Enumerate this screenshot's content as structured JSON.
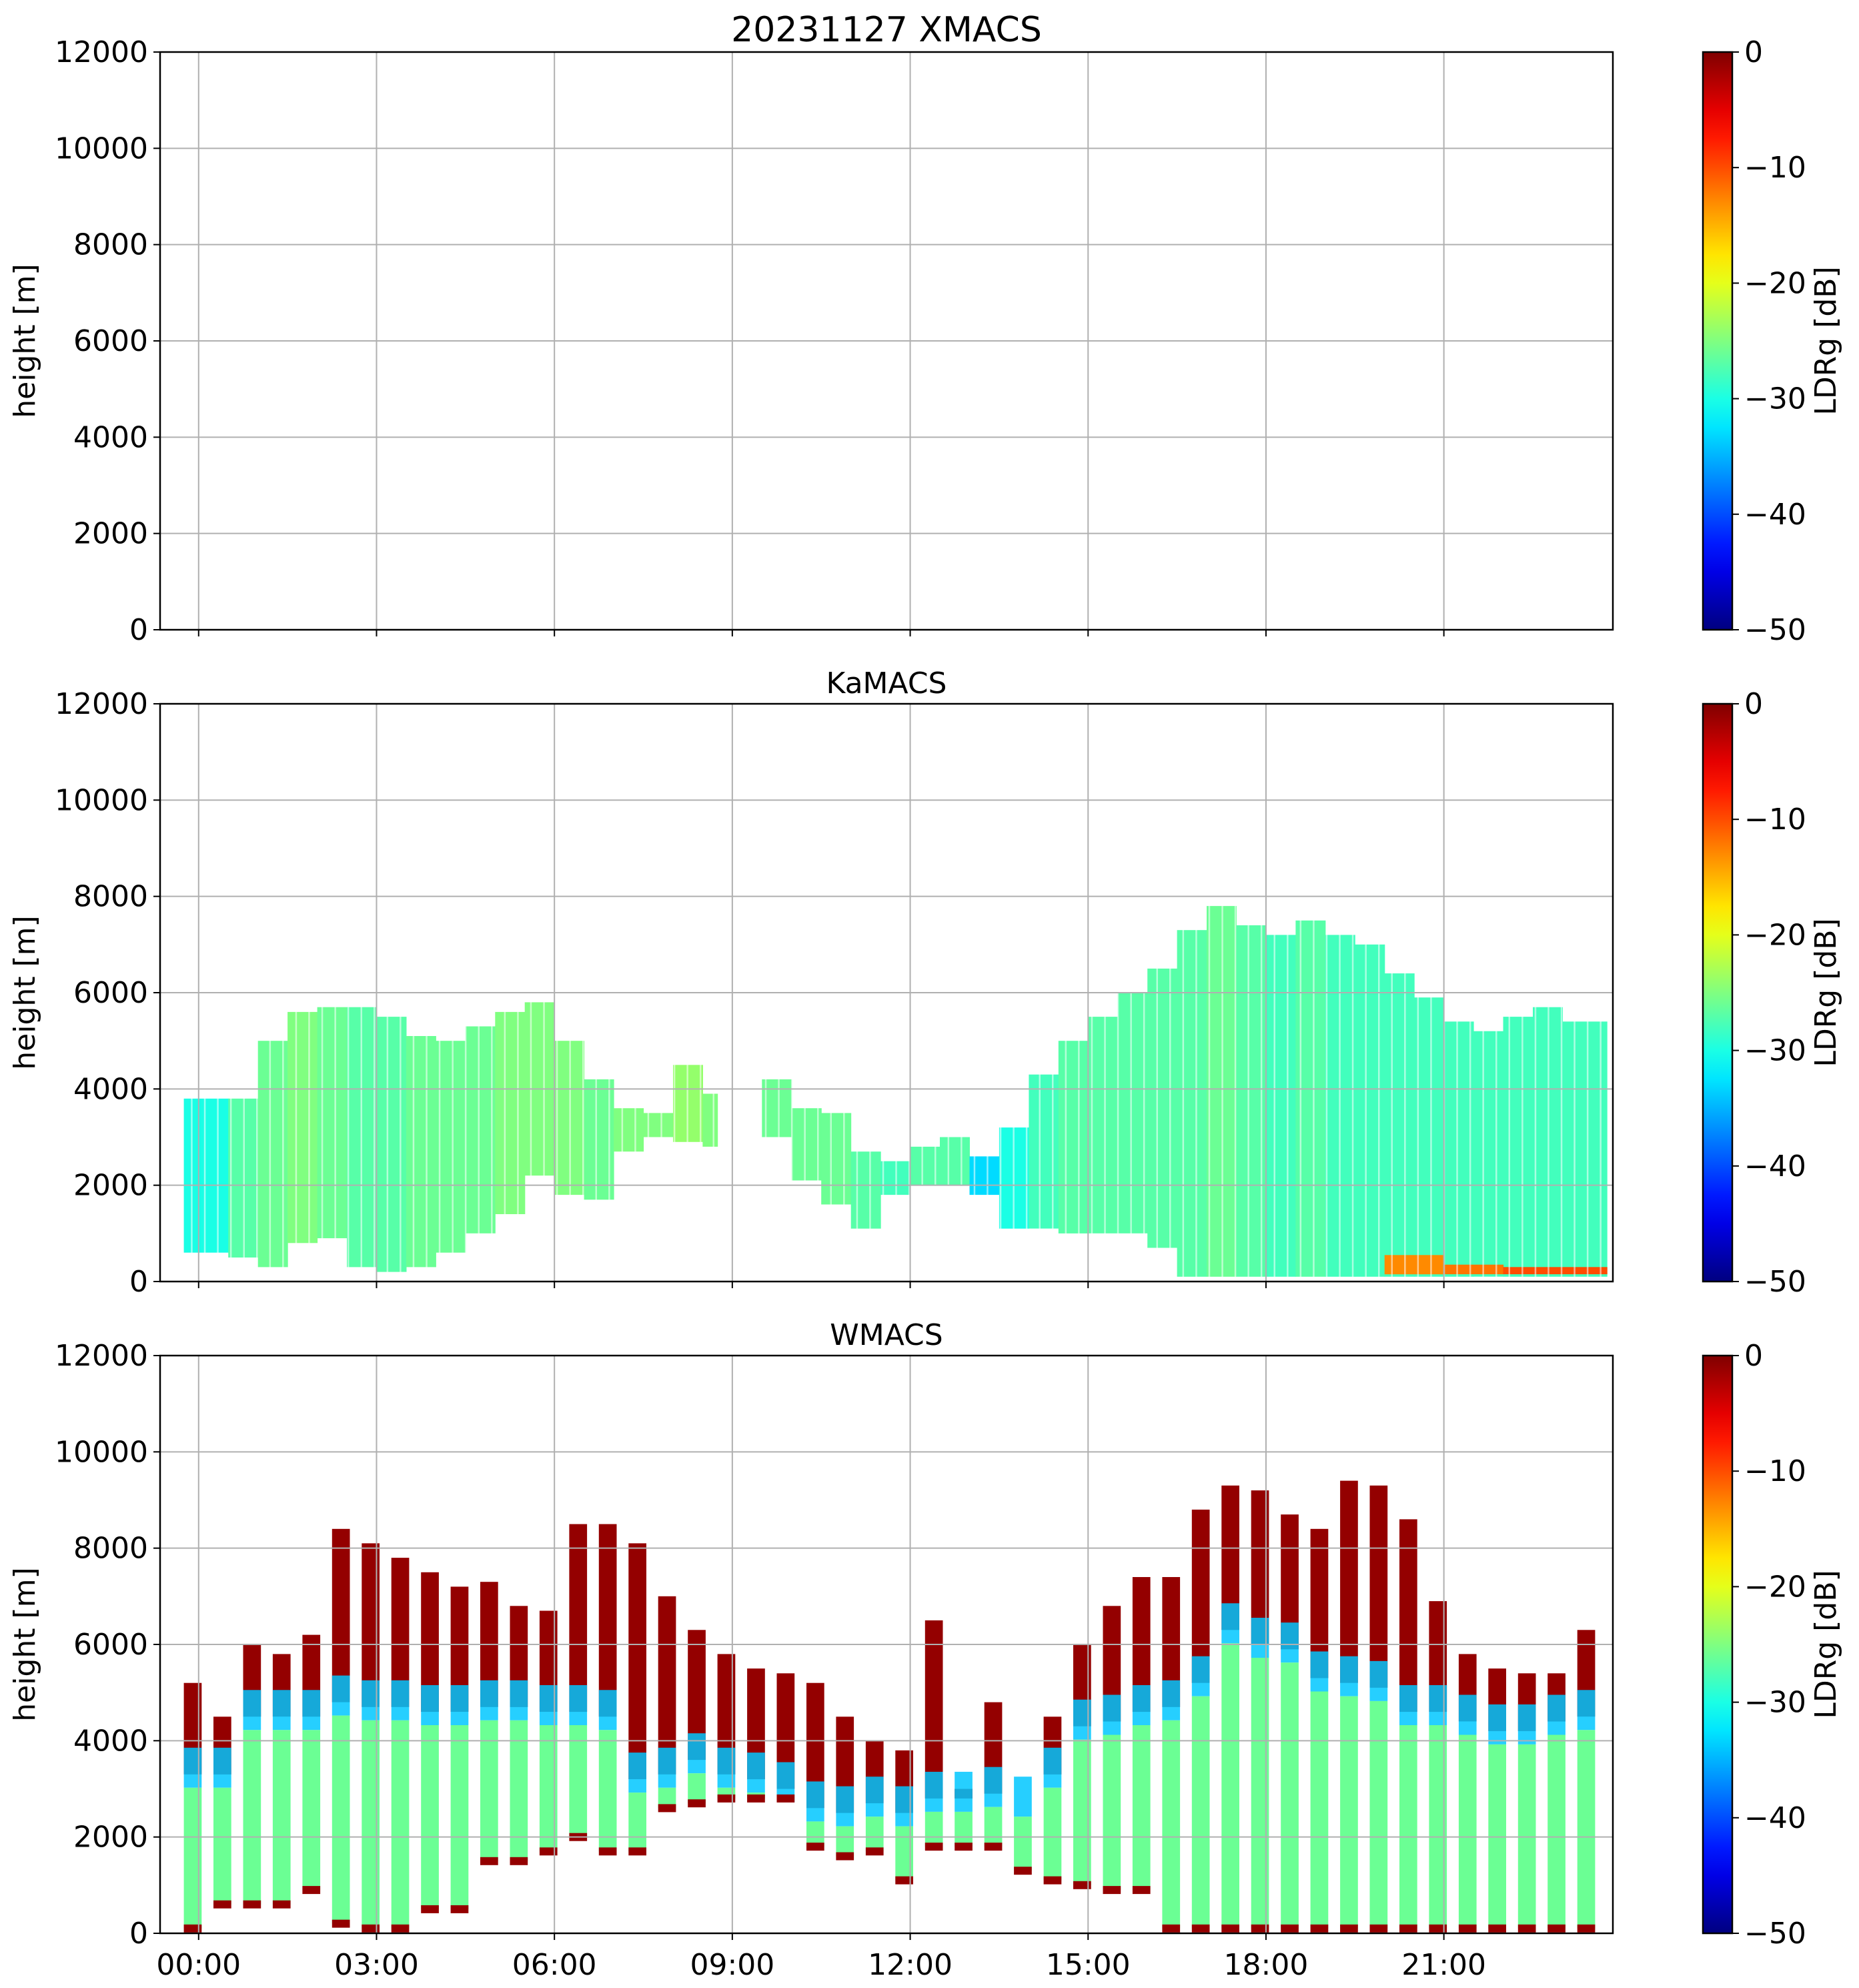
{
  "chart_data": [
    {
      "type": "heatmap",
      "title": "20231127 XMACS",
      "xlabel": "",
      "ylabel": "height [m]",
      "ylim": [
        0,
        12000
      ],
      "yticks": [
        "0",
        "2000",
        "4000",
        "6000",
        "8000",
        "10000",
        "12000"
      ],
      "xticks": [],
      "grid": true,
      "colorbar": {
        "label": "LDRg [dB]",
        "range": [
          -50,
          0
        ],
        "ticks": [
          "0",
          "−10",
          "−20",
          "−30",
          "−40",
          "−50"
        ],
        "colormap": "jet"
      },
      "cells": []
    },
    {
      "type": "heatmap",
      "title": "KaMACS",
      "xlabel": "",
      "ylabel": "height [m]",
      "ylim": [
        0,
        12000
      ],
      "yticks": [
        "0",
        "2000",
        "4000",
        "6000",
        "8000",
        "10000",
        "12000"
      ],
      "xticks": [],
      "grid": true,
      "colorbar": {
        "label": "LDRg [dB]",
        "range": [
          -50,
          0
        ],
        "ticks": [
          "0",
          "−10",
          "−20",
          "−30",
          "−40",
          "−50"
        ],
        "colormap": "jet"
      },
      "cells": [
        {
          "t0": -0.25,
          "t1": 0.5,
          "h0": 600,
          "h1": 3800,
          "ldr": -30
        },
        {
          "t0": 0.5,
          "t1": 1.0,
          "h0": 500,
          "h1": 3800,
          "ldr": -27
        },
        {
          "t0": 1.0,
          "t1": 1.5,
          "h0": 300,
          "h1": 5000,
          "ldr": -26
        },
        {
          "t0": 1.5,
          "t1": 2.0,
          "h0": 800,
          "h1": 5600,
          "ldr": -25
        },
        {
          "t0": 2.0,
          "t1": 2.5,
          "h0": 900,
          "h1": 5700,
          "ldr": -26
        },
        {
          "t0": 2.5,
          "t1": 3.0,
          "h0": 300,
          "h1": 5700,
          "ldr": -27
        },
        {
          "t0": 3.0,
          "t1": 3.5,
          "h0": 200,
          "h1": 5500,
          "ldr": -27
        },
        {
          "t0": 3.5,
          "t1": 4.0,
          "h0": 300,
          "h1": 5100,
          "ldr": -26
        },
        {
          "t0": 4.0,
          "t1": 4.5,
          "h0": 600,
          "h1": 5000,
          "ldr": -26
        },
        {
          "t0": 4.5,
          "t1": 5.0,
          "h0": 1000,
          "h1": 5300,
          "ldr": -26
        },
        {
          "t0": 5.0,
          "t1": 5.5,
          "h0": 1400,
          "h1": 5600,
          "ldr": -25
        },
        {
          "t0": 5.5,
          "t1": 6.0,
          "h0": 2200,
          "h1": 5800,
          "ldr": -25
        },
        {
          "t0": 6.0,
          "t1": 6.5,
          "h0": 1800,
          "h1": 5000,
          "ldr": -25
        },
        {
          "t0": 6.5,
          "t1": 7.0,
          "h0": 1700,
          "h1": 4200,
          "ldr": -26
        },
        {
          "t0": 7.0,
          "t1": 7.5,
          "h0": 2700,
          "h1": 3600,
          "ldr": -25
        },
        {
          "t0": 7.5,
          "t1": 8.0,
          "h0": 3000,
          "h1": 3500,
          "ldr": -25
        },
        {
          "t0": 8.0,
          "t1": 8.5,
          "h0": 2900,
          "h1": 4500,
          "ldr": -24
        },
        {
          "t0": 8.5,
          "t1": 8.75,
          "h0": 2800,
          "h1": 3900,
          "ldr": -25
        },
        {
          "t0": 9.5,
          "t1": 10.0,
          "h0": 3000,
          "h1": 4200,
          "ldr": -26
        },
        {
          "t0": 10.0,
          "t1": 10.5,
          "h0": 2100,
          "h1": 3600,
          "ldr": -26
        },
        {
          "t0": 10.5,
          "t1": 11.0,
          "h0": 1600,
          "h1": 3500,
          "ldr": -26
        },
        {
          "t0": 11.0,
          "t1": 11.5,
          "h0": 1100,
          "h1": 2700,
          "ldr": -27
        },
        {
          "t0": 11.5,
          "t1": 12.0,
          "h0": 1800,
          "h1": 2500,
          "ldr": -28
        },
        {
          "t0": 12.0,
          "t1": 12.5,
          "h0": 2000,
          "h1": 2800,
          "ldr": -27
        },
        {
          "t0": 12.5,
          "t1": 13.0,
          "h0": 2000,
          "h1": 3000,
          "ldr": -27
        },
        {
          "t0": 13.0,
          "t1": 13.5,
          "h0": 1800,
          "h1": 2600,
          "ldr": -33
        },
        {
          "t0": 13.5,
          "t1": 14.0,
          "h0": 1100,
          "h1": 3200,
          "ldr": -30
        },
        {
          "t0": 14.0,
          "t1": 14.5,
          "h0": 1100,
          "h1": 4300,
          "ldr": -28
        },
        {
          "t0": 14.5,
          "t1": 15.0,
          "h0": 1000,
          "h1": 5000,
          "ldr": -27
        },
        {
          "t0": 15.0,
          "t1": 15.5,
          "h0": 1000,
          "h1": 5500,
          "ldr": -27
        },
        {
          "t0": 15.5,
          "t1": 16.0,
          "h0": 1000,
          "h1": 6000,
          "ldr": -27
        },
        {
          "t0": 16.0,
          "t1": 16.5,
          "h0": 700,
          "h1": 6500,
          "ldr": -27
        },
        {
          "t0": 16.5,
          "t1": 17.0,
          "h0": 100,
          "h1": 7300,
          "ldr": -27
        },
        {
          "t0": 17.0,
          "t1": 17.5,
          "h0": 100,
          "h1": 7800,
          "ldr": -26
        },
        {
          "t0": 17.5,
          "t1": 18.0,
          "h0": 100,
          "h1": 7400,
          "ldr": -27
        },
        {
          "t0": 18.0,
          "t1": 18.5,
          "h0": 100,
          "h1": 7200,
          "ldr": -28
        },
        {
          "t0": 18.5,
          "t1": 19.0,
          "h0": 100,
          "h1": 7500,
          "ldr": -27
        },
        {
          "t0": 19.0,
          "t1": 19.5,
          "h0": 100,
          "h1": 7200,
          "ldr": -28
        },
        {
          "t0": 19.5,
          "t1": 20.0,
          "h0": 100,
          "h1": 7000,
          "ldr": -28
        },
        {
          "t0": 20.0,
          "t1": 20.5,
          "h0": 100,
          "h1": 6400,
          "ldr": -28
        },
        {
          "t0": 20.5,
          "t1": 21.0,
          "h0": 100,
          "h1": 5900,
          "ldr": -28
        },
        {
          "t0": 21.0,
          "t1": 21.5,
          "h0": 100,
          "h1": 5400,
          "ldr": -28
        },
        {
          "t0": 21.5,
          "t1": 22.0,
          "h0": 100,
          "h1": 5200,
          "ldr": -28
        },
        {
          "t0": 22.0,
          "t1": 22.5,
          "h0": 100,
          "h1": 5500,
          "ldr": -28
        },
        {
          "t0": 22.5,
          "t1": 23.0,
          "h0": 100,
          "h1": 5700,
          "ldr": -28
        },
        {
          "t0": 23.0,
          "t1": 23.75,
          "h0": 100,
          "h1": 5400,
          "ldr": -28
        },
        {
          "t0": 20.0,
          "t1": 21.0,
          "h0": 150,
          "h1": 550,
          "ldr": -13
        },
        {
          "t0": 21.0,
          "t1": 22.0,
          "h0": 150,
          "h1": 350,
          "ldr": -12
        },
        {
          "t0": 22.0,
          "t1": 23.75,
          "h0": 150,
          "h1": 300,
          "ldr": -10
        }
      ]
    },
    {
      "type": "heatmap",
      "title": "WMACS",
      "xlabel": "",
      "ylabel": "height [m]",
      "ylim": [
        0,
        12000
      ],
      "yticks": [
        "0",
        "2000",
        "4000",
        "6000",
        "8000",
        "10000",
        "12000"
      ],
      "xticks": [
        "00:00",
        "03:00",
        "06:00",
        "09:00",
        "12:00",
        "15:00",
        "18:00",
        "21:00"
      ],
      "grid": true,
      "colorbar": {
        "label": "LDRg [dB]",
        "range": [
          -50,
          0
        ],
        "ticks": [
          "0",
          "−10",
          "−20",
          "−30",
          "−40",
          "−50"
        ],
        "colormap": "jet"
      },
      "columns": [
        {
          "t": -0.1,
          "bottom": 100,
          "top": 5200,
          "melt": 3300
        },
        {
          "t": 0.4,
          "bottom": 600,
          "top": 4500,
          "melt": 3300
        },
        {
          "t": 0.9,
          "bottom": 600,
          "top": 6000,
          "melt": 4500
        },
        {
          "t": 1.4,
          "bottom": 600,
          "top": 5800,
          "melt": 4500
        },
        {
          "t": 1.9,
          "bottom": 900,
          "top": 6200,
          "melt": 4500
        },
        {
          "t": 2.4,
          "bottom": 200,
          "top": 8400,
          "melt": 4800
        },
        {
          "t": 2.9,
          "bottom": 100,
          "top": 8100,
          "melt": 4700
        },
        {
          "t": 3.4,
          "bottom": 100,
          "top": 7800,
          "melt": 4700
        },
        {
          "t": 3.9,
          "bottom": 500,
          "top": 7500,
          "melt": 4600
        },
        {
          "t": 4.4,
          "bottom": 500,
          "top": 7200,
          "melt": 4600
        },
        {
          "t": 4.9,
          "bottom": 1500,
          "top": 7300,
          "melt": 4700
        },
        {
          "t": 5.4,
          "bottom": 1500,
          "top": 6800,
          "melt": 4700
        },
        {
          "t": 5.9,
          "bottom": 1700,
          "top": 6700,
          "melt": 4600
        },
        {
          "t": 6.4,
          "bottom": 2000,
          "top": 8500,
          "melt": 4600
        },
        {
          "t": 6.9,
          "bottom": 1700,
          "top": 8500,
          "melt": 4500
        },
        {
          "t": 7.4,
          "bottom": 1700,
          "top": 8100,
          "melt": 3200
        },
        {
          "t": 7.9,
          "bottom": 2600,
          "top": 7000,
          "melt": 3300
        },
        {
          "t": 8.4,
          "bottom": 2700,
          "top": 6300,
          "melt": 3600
        },
        {
          "t": 8.9,
          "bottom": 2800,
          "top": 5800,
          "melt": 3300
        },
        {
          "t": 9.4,
          "bottom": 2800,
          "top": 5500,
          "melt": 3200
        },
        {
          "t": 9.9,
          "bottom": 2800,
          "top": 5400,
          "melt": 3000
        },
        {
          "t": 10.4,
          "bottom": 1800,
          "top": 5200,
          "melt": 2600
        },
        {
          "t": 10.9,
          "bottom": 1600,
          "top": 4500,
          "melt": 2500
        },
        {
          "t": 11.4,
          "bottom": 1700,
          "top": 4000,
          "melt": 2700
        },
        {
          "t": 11.9,
          "bottom": 1100,
          "top": 3800,
          "melt": 2500
        },
        {
          "t": 12.4,
          "bottom": 1800,
          "top": 6500,
          "melt": 2800
        },
        {
          "t": 12.9,
          "bottom": 1800,
          "top": 3000,
          "melt": 2800
        },
        {
          "t": 13.4,
          "bottom": 1800,
          "top": 4800,
          "melt": 2900
        },
        {
          "t": 13.9,
          "bottom": 1300,
          "top": 2700,
          "melt": 2700
        },
        {
          "t": 14.4,
          "bottom": 1100,
          "top": 4500,
          "melt": 3300
        },
        {
          "t": 14.9,
          "bottom": 1000,
          "top": 6000,
          "melt": 4300
        },
        {
          "t": 15.4,
          "bottom": 900,
          "top": 6800,
          "melt": 4400
        },
        {
          "t": 15.9,
          "bottom": 900,
          "top": 7400,
          "melt": 4600
        },
        {
          "t": 16.4,
          "bottom": 100,
          "top": 7400,
          "melt": 4700
        },
        {
          "t": 16.9,
          "bottom": 100,
          "top": 8800,
          "melt": 5200
        },
        {
          "t": 17.4,
          "bottom": 100,
          "top": 9300,
          "melt": 6300
        },
        {
          "t": 17.9,
          "bottom": 100,
          "top": 9200,
          "melt": 6000
        },
        {
          "t": 18.4,
          "bottom": 100,
          "top": 8700,
          "melt": 5900
        },
        {
          "t": 18.9,
          "bottom": 100,
          "top": 8400,
          "melt": 5300
        },
        {
          "t": 19.4,
          "bottom": 100,
          "top": 9400,
          "melt": 5200
        },
        {
          "t": 19.9,
          "bottom": 100,
          "top": 9300,
          "melt": 5100
        },
        {
          "t": 20.4,
          "bottom": 100,
          "top": 8600,
          "melt": 4600
        },
        {
          "t": 20.9,
          "bottom": 100,
          "top": 6900,
          "melt": 4600
        },
        {
          "t": 21.4,
          "bottom": 100,
          "top": 5800,
          "melt": 4400
        },
        {
          "t": 21.9,
          "bottom": 100,
          "top": 5500,
          "melt": 4200
        },
        {
          "t": 22.4,
          "bottom": 100,
          "top": 5400,
          "melt": 4200
        },
        {
          "t": 22.9,
          "bottom": 100,
          "top": 5400,
          "melt": 4400
        },
        {
          "t": 23.4,
          "bottom": 100,
          "top": 6300,
          "melt": 4500
        }
      ]
    }
  ]
}
